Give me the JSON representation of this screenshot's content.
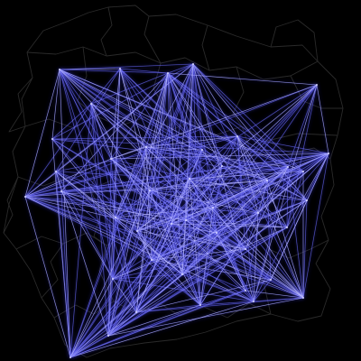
{
  "map": {
    "background_color": "#000000",
    "boundary_color": "#2a2a2a",
    "flow_color_faint": "#3c3ce6",
    "flow_color_bright": "#c8c8ff",
    "node_color": "#d9d9ff",
    "style": "origin-destination flow network over administrative boundaries"
  }
}
